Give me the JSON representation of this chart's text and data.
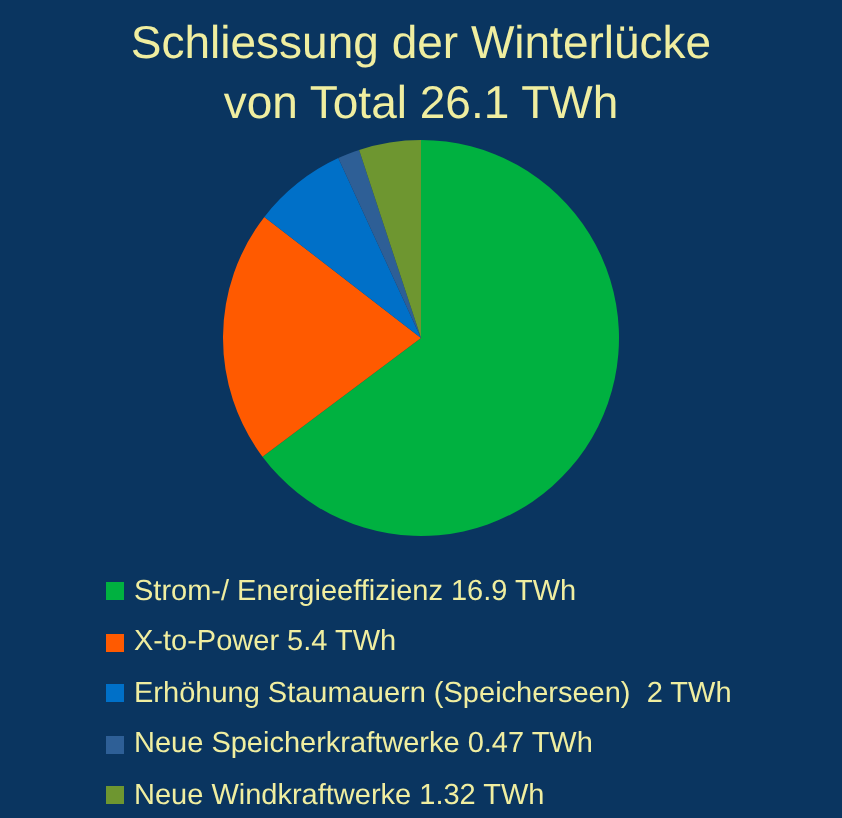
{
  "chart_data": {
    "type": "pie",
    "title": "Schliessung der Winterlücke von Total 26.1 TWh",
    "categories": [
      "Strom-/ Energieeffizienz 16.9 TWh",
      "X-to-Power 5.4 TWh",
      "Erhöhung Staumauern (Speicherseen)  2 TWh",
      "Neue Speicherkraftwerke 0.47 TWh",
      "Neue Windkraftwerke 1.32 TWh"
    ],
    "values": [
      16.9,
      5.4,
      2,
      0.47,
      1.32
    ],
    "colors": [
      "#00b140",
      "#ff5a00",
      "#0070c8",
      "#2e5f96",
      "#6e9630"
    ],
    "legend": "bottom"
  }
}
